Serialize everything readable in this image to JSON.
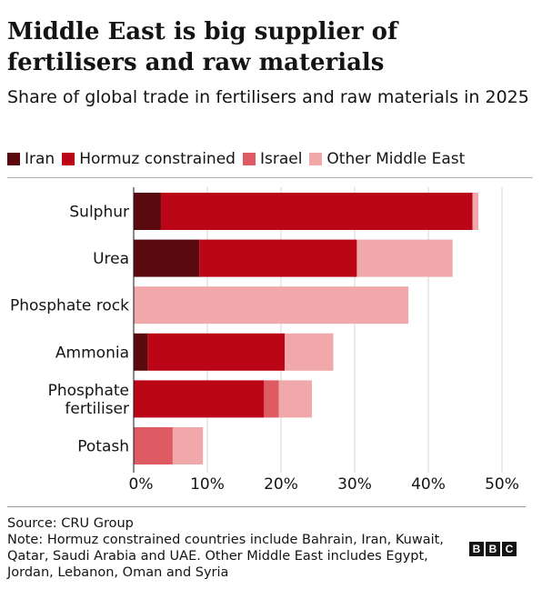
{
  "header": {
    "title": "Middle East is big supplier of fertilisers and raw materials",
    "subtitle": "Share of global trade in fertilisers and raw materials in 2025"
  },
  "legend": [
    {
      "label": "Iran",
      "color": "#5a0a0e"
    },
    {
      "label": "Hormuz constrained",
      "color": "#bb0617"
    },
    {
      "label": "Israel",
      "color": "#de5b63"
    },
    {
      "label": "Other Middle East",
      "color": "#f0a8aa"
    }
  ],
  "chart_data": {
    "type": "bar",
    "orientation": "horizontal",
    "stacked": true,
    "categories": [
      "Sulphur",
      "Urea",
      "Phosphate rock",
      "Ammonia",
      "Phosphate fertiliser",
      "Potash"
    ],
    "series": [
      {
        "name": "Iran",
        "color": "#5a0a0e",
        "values": [
          3.7,
          8.9,
          0,
          1.9,
          0,
          0
        ]
      },
      {
        "name": "Hormuz constrained",
        "color": "#bb0617",
        "values": [
          42.3,
          21.4,
          0,
          18.6,
          17.7,
          0
        ]
      },
      {
        "name": "Israel",
        "color": "#de5b63",
        "values": [
          0,
          0,
          0,
          0,
          2.0,
          5.3
        ]
      },
      {
        "name": "Other Middle East",
        "color": "#f0a8aa",
        "values": [
          0.8,
          13.0,
          37.3,
          6.6,
          4.5,
          4.1
        ]
      }
    ],
    "xlim": [
      0,
      50
    ],
    "xticks": [
      "0%",
      "10%",
      "20%",
      "30%",
      "40%",
      "50%"
    ],
    "grid": true,
    "legend_position": "top"
  },
  "footer": {
    "source": "Source: CRU Group",
    "note": "Note: Hormuz constrained countries include Bahrain, Iran, Kuwait, Qatar, Saudi Arabia and UAE. Other Middle East includes Egypt, Jordan, Lebanon, Oman and Syria",
    "logo_letters": [
      "B",
      "B",
      "C"
    ]
  }
}
